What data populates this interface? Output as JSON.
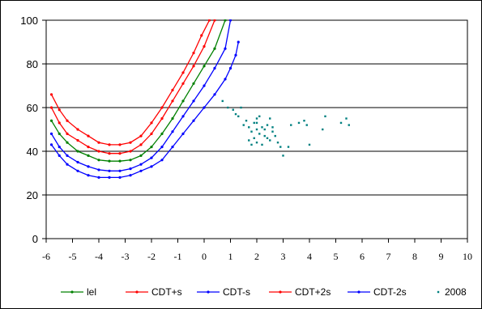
{
  "chart_data": {
    "type": "line",
    "title": "",
    "xlabel": "",
    "ylabel": "",
    "xlim": [
      -6,
      10
    ],
    "ylim": [
      0,
      100
    ],
    "x_ticks": [
      "-6",
      "-5",
      "-4",
      "-3",
      "-2",
      "-1",
      "0",
      "1",
      "2",
      "3",
      "4",
      "5",
      "6",
      "7",
      "8",
      "9",
      "10"
    ],
    "y_ticks": [
      "0",
      "20",
      "40",
      "60",
      "80",
      "100"
    ],
    "grid": "horizontal",
    "legend_position": "bottom",
    "series": [
      {
        "name": "CDT+2s",
        "color": "#ff0000",
        "marker": "dot",
        "points": [
          [
            -5.8,
            66
          ],
          [
            -5.5,
            59
          ],
          [
            -5.2,
            54
          ],
          [
            -4.8,
            50
          ],
          [
            -4.4,
            47
          ],
          [
            -4.0,
            44
          ],
          [
            -3.6,
            43
          ],
          [
            -3.2,
            43
          ],
          [
            -2.8,
            44
          ],
          [
            -2.4,
            47
          ],
          [
            -2.0,
            53
          ],
          [
            -1.6,
            60
          ],
          [
            -1.2,
            68
          ],
          [
            -0.8,
            76
          ],
          [
            -0.4,
            85
          ],
          [
            -0.1,
            93
          ],
          [
            0.2,
            100
          ]
        ]
      },
      {
        "name": "CDT+s",
        "color": "#ff0000",
        "marker": "dot",
        "points": [
          [
            -5.8,
            60
          ],
          [
            -5.5,
            53
          ],
          [
            -5.2,
            48
          ],
          [
            -4.8,
            45
          ],
          [
            -4.4,
            42
          ],
          [
            -4.0,
            40
          ],
          [
            -3.6,
            39
          ],
          [
            -3.2,
            39
          ],
          [
            -2.8,
            40
          ],
          [
            -2.4,
            43
          ],
          [
            -2.0,
            48
          ],
          [
            -1.6,
            55
          ],
          [
            -1.2,
            63
          ],
          [
            -0.8,
            71
          ],
          [
            -0.4,
            79
          ],
          [
            0.0,
            88
          ],
          [
            0.4,
            100
          ]
        ]
      },
      {
        "name": "lel",
        "color": "#008000",
        "marker": "dot",
        "points": [
          [
            -5.8,
            54
          ],
          [
            -5.5,
            48
          ],
          [
            -5.2,
            44
          ],
          [
            -4.8,
            40
          ],
          [
            -4.4,
            38
          ],
          [
            -4.0,
            36
          ],
          [
            -3.6,
            35.5
          ],
          [
            -3.2,
            35.5
          ],
          [
            -2.8,
            36
          ],
          [
            -2.4,
            38
          ],
          [
            -2.0,
            42
          ],
          [
            -1.6,
            48
          ],
          [
            -1.2,
            55
          ],
          [
            -0.8,
            63
          ],
          [
            -0.4,
            71
          ],
          [
            0.0,
            79
          ],
          [
            0.4,
            87
          ],
          [
            0.8,
            100
          ]
        ]
      },
      {
        "name": "CDT-s",
        "color": "#0000ff",
        "marker": "dot",
        "points": [
          [
            -5.8,
            48
          ],
          [
            -5.5,
            42
          ],
          [
            -5.2,
            38
          ],
          [
            -4.8,
            35
          ],
          [
            -4.4,
            33
          ],
          [
            -4.0,
            31.5
          ],
          [
            -3.6,
            31
          ],
          [
            -3.2,
            31
          ],
          [
            -2.8,
            32
          ],
          [
            -2.4,
            34
          ],
          [
            -2.0,
            37
          ],
          [
            -1.6,
            42
          ],
          [
            -1.2,
            49
          ],
          [
            -0.8,
            56
          ],
          [
            -0.4,
            63
          ],
          [
            0.0,
            70
          ],
          [
            0.4,
            78
          ],
          [
            0.8,
            87
          ],
          [
            1.0,
            100
          ]
        ]
      },
      {
        "name": "CDT-2s",
        "color": "#0000ff",
        "marker": "dot",
        "points": [
          [
            -5.8,
            43
          ],
          [
            -5.5,
            38
          ],
          [
            -5.2,
            34
          ],
          [
            -4.8,
            31
          ],
          [
            -4.4,
            29
          ],
          [
            -4.0,
            28
          ],
          [
            -3.6,
            28
          ],
          [
            -3.2,
            28
          ],
          [
            -2.8,
            29
          ],
          [
            -2.4,
            31
          ],
          [
            -2.0,
            33
          ],
          [
            -1.6,
            36
          ],
          [
            -1.2,
            42
          ],
          [
            -0.8,
            48
          ],
          [
            -0.4,
            54
          ],
          [
            0.0,
            60
          ],
          [
            0.4,
            66
          ],
          [
            0.8,
            73
          ],
          [
            1.0,
            78
          ],
          [
            1.2,
            84
          ],
          [
            1.3,
            90
          ]
        ]
      },
      {
        "name": "2008",
        "color": "#008080",
        "marker": "point",
        "points": [
          [
            0.7,
            63
          ],
          [
            0.9,
            60
          ],
          [
            1.1,
            59
          ],
          [
            1.2,
            57
          ],
          [
            1.3,
            56
          ],
          [
            1.4,
            60
          ],
          [
            1.5,
            52
          ],
          [
            1.6,
            54
          ],
          [
            1.7,
            51
          ],
          [
            1.8,
            49
          ],
          [
            1.9,
            53
          ],
          [
            2.0,
            55
          ],
          [
            1.9,
            46
          ],
          [
            2.0,
            44
          ],
          [
            1.8,
            43
          ],
          [
            2.1,
            48
          ],
          [
            2.2,
            51
          ],
          [
            2.3,
            50
          ],
          [
            2.4,
            52
          ],
          [
            2.5,
            55
          ],
          [
            2.6,
            49
          ],
          [
            2.7,
            47
          ],
          [
            2.4,
            46
          ],
          [
            2.2,
            43
          ],
          [
            2.5,
            45
          ],
          [
            2.8,
            44
          ],
          [
            2.9,
            42
          ],
          [
            3.0,
            38
          ],
          [
            3.2,
            42
          ],
          [
            3.3,
            52
          ],
          [
            3.6,
            53
          ],
          [
            3.8,
            54
          ],
          [
            3.9,
            52
          ],
          [
            4.0,
            43
          ],
          [
            4.5,
            50
          ],
          [
            4.6,
            56
          ],
          [
            5.2,
            53
          ],
          [
            5.4,
            55
          ],
          [
            5.5,
            52
          ],
          [
            2.1,
            56
          ],
          [
            2.0,
            53
          ],
          [
            2.6,
            51
          ],
          [
            2.3,
            47
          ],
          [
            2.0,
            50
          ],
          [
            1.7,
            45
          ]
        ]
      }
    ],
    "legend": [
      {
        "label": "lel",
        "color": "#008000",
        "marker": "dot"
      },
      {
        "label": "CDT+s",
        "color": "#ff0000",
        "marker": "dot"
      },
      {
        "label": "CDT-s",
        "color": "#0000ff",
        "marker": "dot"
      },
      {
        "label": "CDT+2s",
        "color": "#ff0000",
        "marker": "dot"
      },
      {
        "label": "CDT-2s",
        "color": "#0000ff",
        "marker": "dot"
      },
      {
        "label": "2008",
        "color": "#008080",
        "marker": "point"
      }
    ]
  }
}
